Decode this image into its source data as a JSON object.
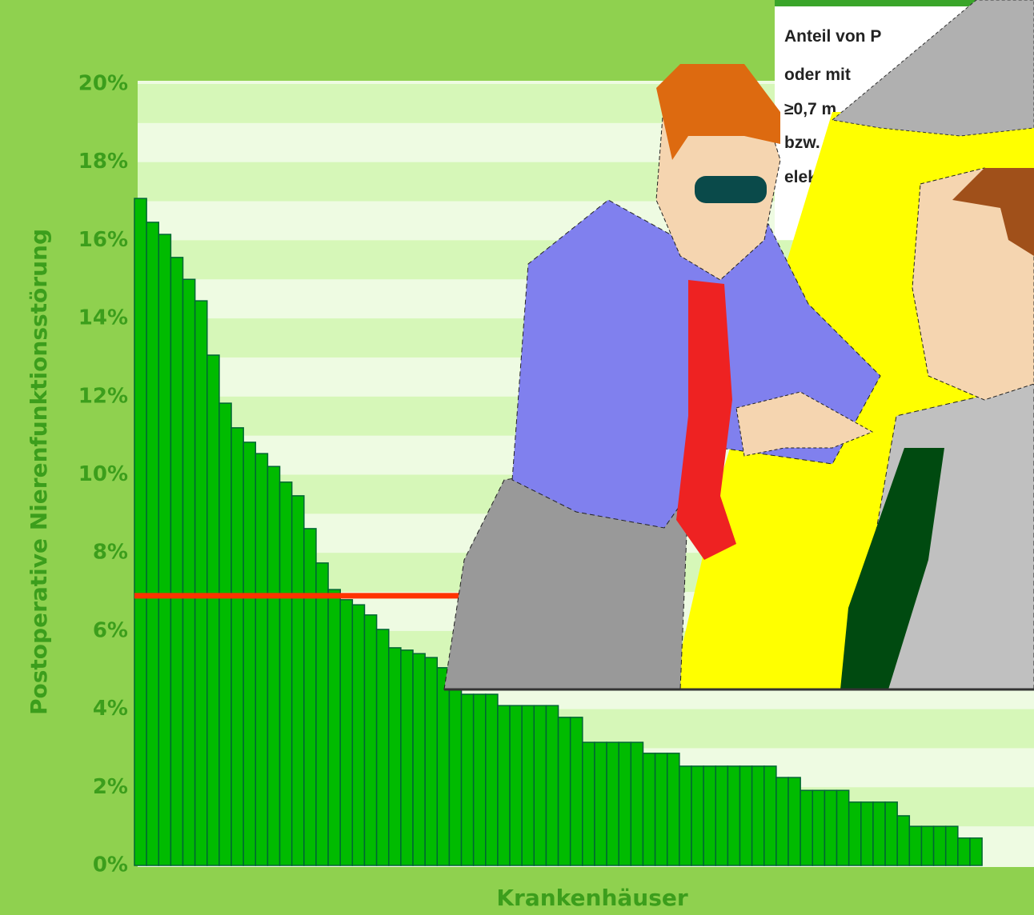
{
  "chart_data": {
    "type": "bar",
    "x_label": "Krankenhäuser",
    "y_label": "Postoperative Nierenfunktionsstörung",
    "values": [
      17.07,
      16.46,
      16.15,
      15.56,
      15.0,
      14.45,
      13.06,
      11.83,
      11.2,
      10.83,
      10.54,
      10.21,
      9.81,
      9.46,
      8.62,
      7.74,
      7.06,
      6.8,
      6.67,
      6.41,
      6.04,
      5.57,
      5.51,
      5.42,
      5.32,
      5.06,
      4.5,
      4.38,
      4.38,
      4.38,
      4.09,
      4.09,
      4.09,
      4.09,
      4.09,
      3.79,
      3.79,
      3.15,
      3.15,
      3.15,
      3.15,
      3.15,
      2.87,
      2.87,
      2.87,
      2.54,
      2.54,
      2.54,
      2.54,
      2.54,
      2.54,
      2.54,
      2.54,
      2.25,
      2.25,
      1.92,
      1.92,
      1.92,
      1.92,
      1.62,
      1.62,
      1.62,
      1.62,
      1.27,
      1.0,
      1.0,
      1.0,
      1.0,
      0.7,
      0.7
    ],
    "color": "#00bb00",
    "ylim": [
      0,
      20
    ],
    "yticks": [
      {
        "value": 0,
        "label": "0%"
      },
      {
        "value": 2,
        "label": "2%"
      },
      {
        "value": 4,
        "label": "4%"
      },
      {
        "value": 6,
        "label": "6%"
      },
      {
        "value": 8,
        "label": "8%"
      },
      {
        "value": 10,
        "label": "10%"
      },
      {
        "value": 12,
        "label": "12%"
      },
      {
        "value": 14,
        "label": "14%"
      },
      {
        "value": 16,
        "label": "16%"
      },
      {
        "value": 18,
        "label": "18%"
      },
      {
        "value": 20,
        "label": "20%"
      }
    ],
    "reference_line": {
      "value": 6.9,
      "color": "#ff3300"
    },
    "annotations": [
      "Anteil von P",
      "oder mit",
      "≥0,7 m",
      "bzw.",
      "elek"
    ]
  }
}
